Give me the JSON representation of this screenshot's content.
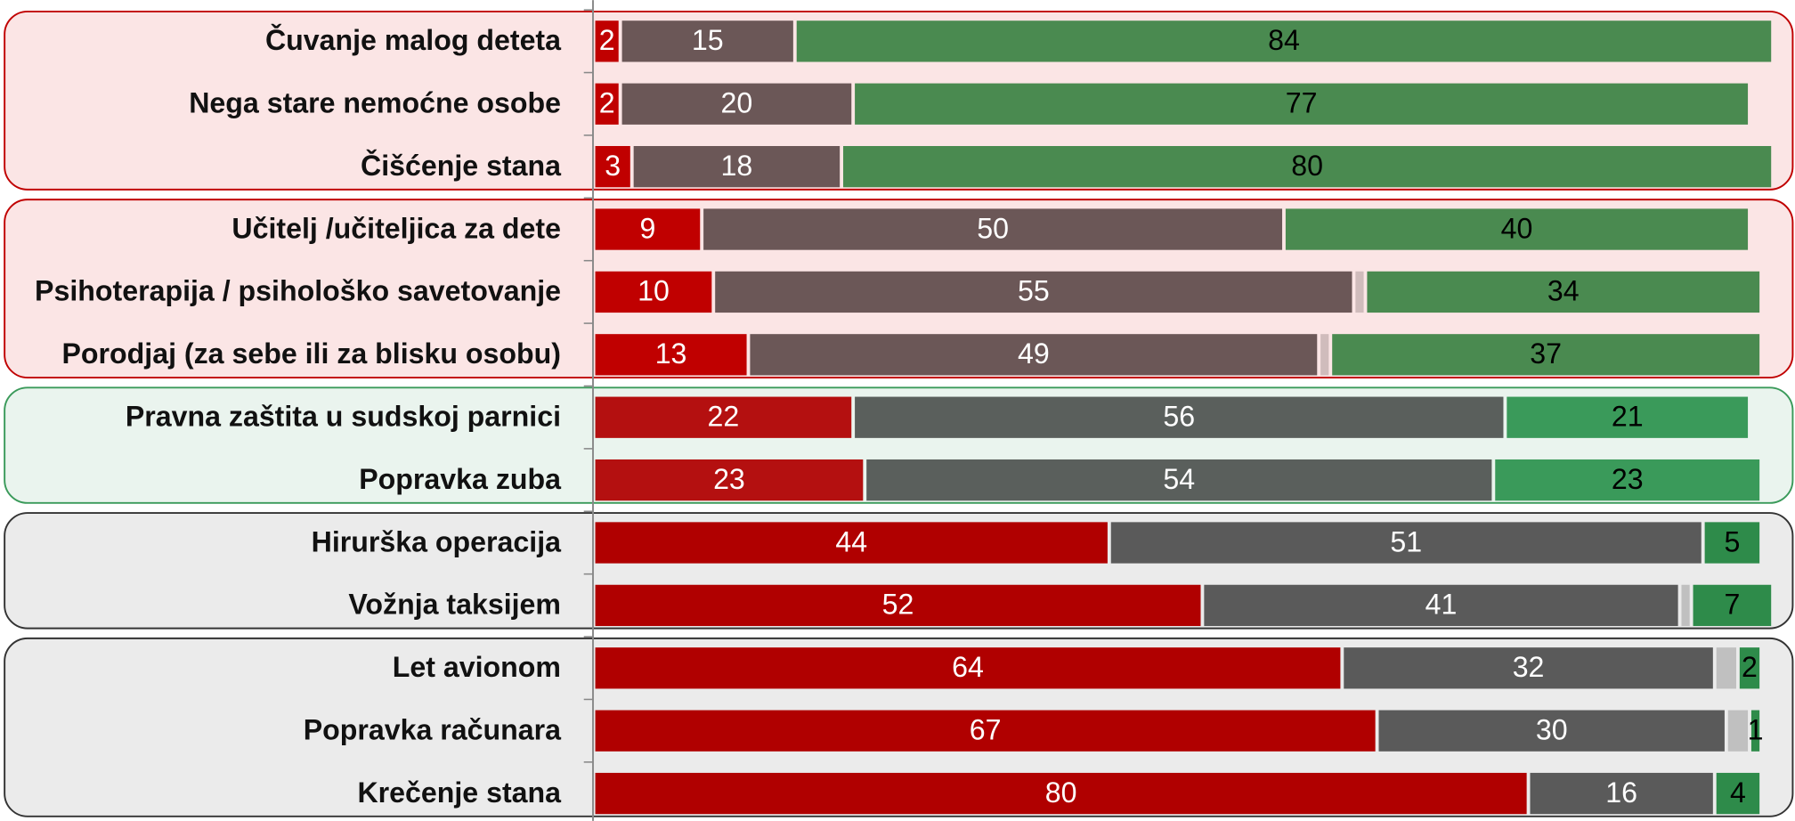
{
  "chart_data": [
    {
      "type": "bar",
      "xlim": [
        0,
        100
      ],
      "background": "#fbe5e5",
      "border": "#c00000",
      "categories": [
        "Čuvanje malog deteta",
        "Nega stare nemoćne osobe",
        "Čišćenje stana"
      ],
      "series": [
        {
          "color": "#c00000",
          "text_color": "#ffffff",
          "show_values": true,
          "values": [
            2,
            2,
            3
          ]
        },
        {
          "color": "#6b5757",
          "text_color": "#ffffff",
          "show_values": true,
          "values": [
            15,
            20,
            18
          ]
        },
        {
          "color": "#d0bcbc",
          "show_values": false,
          "values": [
            null,
            null,
            null
          ]
        },
        {
          "color": "#4a8a50",
          "text_color": "#000000",
          "show_values": true,
          "values": [
            84,
            77,
            80
          ]
        }
      ]
    },
    {
      "type": "bar",
      "xlim": [
        0,
        100
      ],
      "background": "#fbe5e5",
      "border": "#c00000",
      "categories": [
        "Učitelj /učiteljica za dete",
        "Psihoterapija / psihološko savetovanje",
        "Porodjaj (za sebe ili za blisku osobu)"
      ],
      "series": [
        {
          "color": "#c00000",
          "text_color": "#ffffff",
          "show_values": true,
          "values": [
            9,
            10,
            13
          ]
        },
        {
          "color": "#6b5757",
          "text_color": "#ffffff",
          "show_values": true,
          "values": [
            50,
            55,
            49
          ]
        },
        {
          "color": "#d0bcbc",
          "show_values": false,
          "values": [
            null,
            1,
            1
          ]
        },
        {
          "color": "#4a8a50",
          "text_color": "#000000",
          "show_values": true,
          "values": [
            40,
            34,
            37
          ]
        }
      ]
    },
    {
      "type": "bar",
      "xlim": [
        0,
        100
      ],
      "background": "#eaf4ee",
      "border": "#3a9a5a",
      "categories": [
        "Pravna zaštita u sudskoj parnici",
        "Popravka zuba"
      ],
      "series": [
        {
          "color": "#b41010",
          "text_color": "#ffffff",
          "show_values": true,
          "values": [
            22,
            23
          ]
        },
        {
          "color": "#5a5f5c",
          "text_color": "#ffffff",
          "show_values": true,
          "values": [
            56,
            54
          ]
        },
        {
          "color": "#c0c0c0",
          "show_values": false,
          "values": [
            null,
            null
          ]
        },
        {
          "color": "#3a9a5a",
          "text_color": "#000000",
          "show_values": true,
          "values": [
            21,
            23
          ]
        }
      ]
    },
    {
      "type": "bar",
      "xlim": [
        0,
        100
      ],
      "background": "#ebebeb",
      "border": "#333333",
      "categories": [
        "Hirurška operacija",
        "Vožnja taksijem"
      ],
      "series": [
        {
          "color": "#b00000",
          "text_color": "#ffffff",
          "show_values": true,
          "values": [
            44,
            52
          ]
        },
        {
          "color": "#5a5a5a",
          "text_color": "#ffffff",
          "show_values": true,
          "values": [
            51,
            41
          ]
        },
        {
          "color": "#c0c0c0",
          "show_values": false,
          "values": [
            null,
            1
          ]
        },
        {
          "color": "#2e8b4a",
          "text_color": "#000000",
          "show_values": true,
          "values": [
            5,
            7
          ]
        }
      ]
    },
    {
      "type": "bar",
      "xlim": [
        0,
        100
      ],
      "background": "#ebebeb",
      "border": "#333333",
      "categories": [
        "Let avionom",
        "Popravka računara",
        "Krečenje stana"
      ],
      "series": [
        {
          "color": "#b00000",
          "text_color": "#ffffff",
          "show_values": true,
          "values": [
            64,
            67,
            80
          ]
        },
        {
          "color": "#5a5a5a",
          "text_color": "#ffffff",
          "show_values": true,
          "values": [
            32,
            30,
            16
          ]
        },
        {
          "color": "#c0c0c0",
          "show_values": false,
          "values": [
            2,
            2,
            null
          ]
        },
        {
          "color": "#2e8b4a",
          "text_color": "#000000",
          "show_values": true,
          "values": [
            2,
            1,
            4
          ]
        }
      ]
    }
  ]
}
